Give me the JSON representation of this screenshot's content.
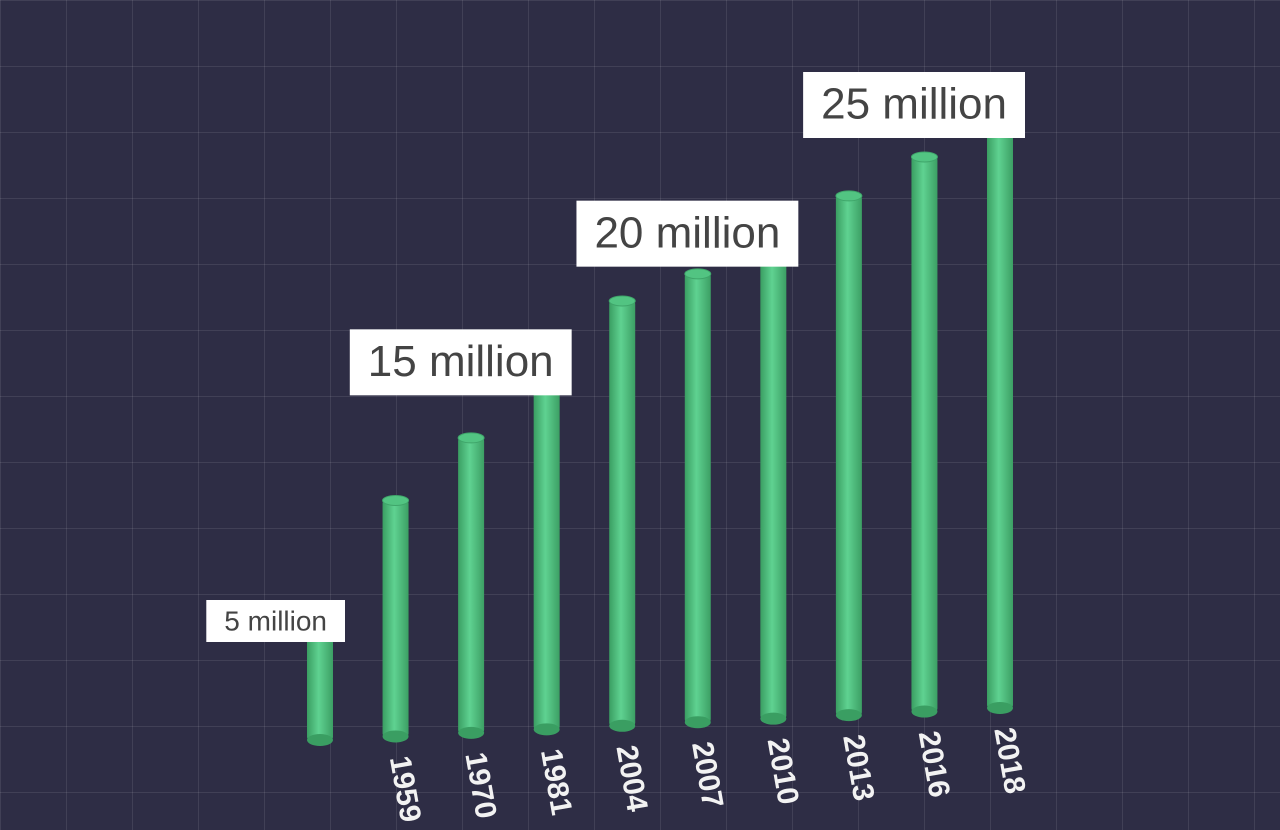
{
  "chart_data": {
    "type": "bar",
    "categories": [
      null,
      "1959",
      "1970",
      "1981",
      "2004",
      "2007",
      "2010",
      "2013",
      "2016",
      "2018"
    ],
    "values": [
      5,
      10,
      12.5,
      15,
      18,
      19,
      20,
      22,
      23.5,
      25
    ],
    "value_labels": [
      "5 million",
      null,
      null,
      "15 million",
      null,
      null,
      "20 million",
      null,
      null,
      "25 million"
    ],
    "color": "#52c482"
  }
}
